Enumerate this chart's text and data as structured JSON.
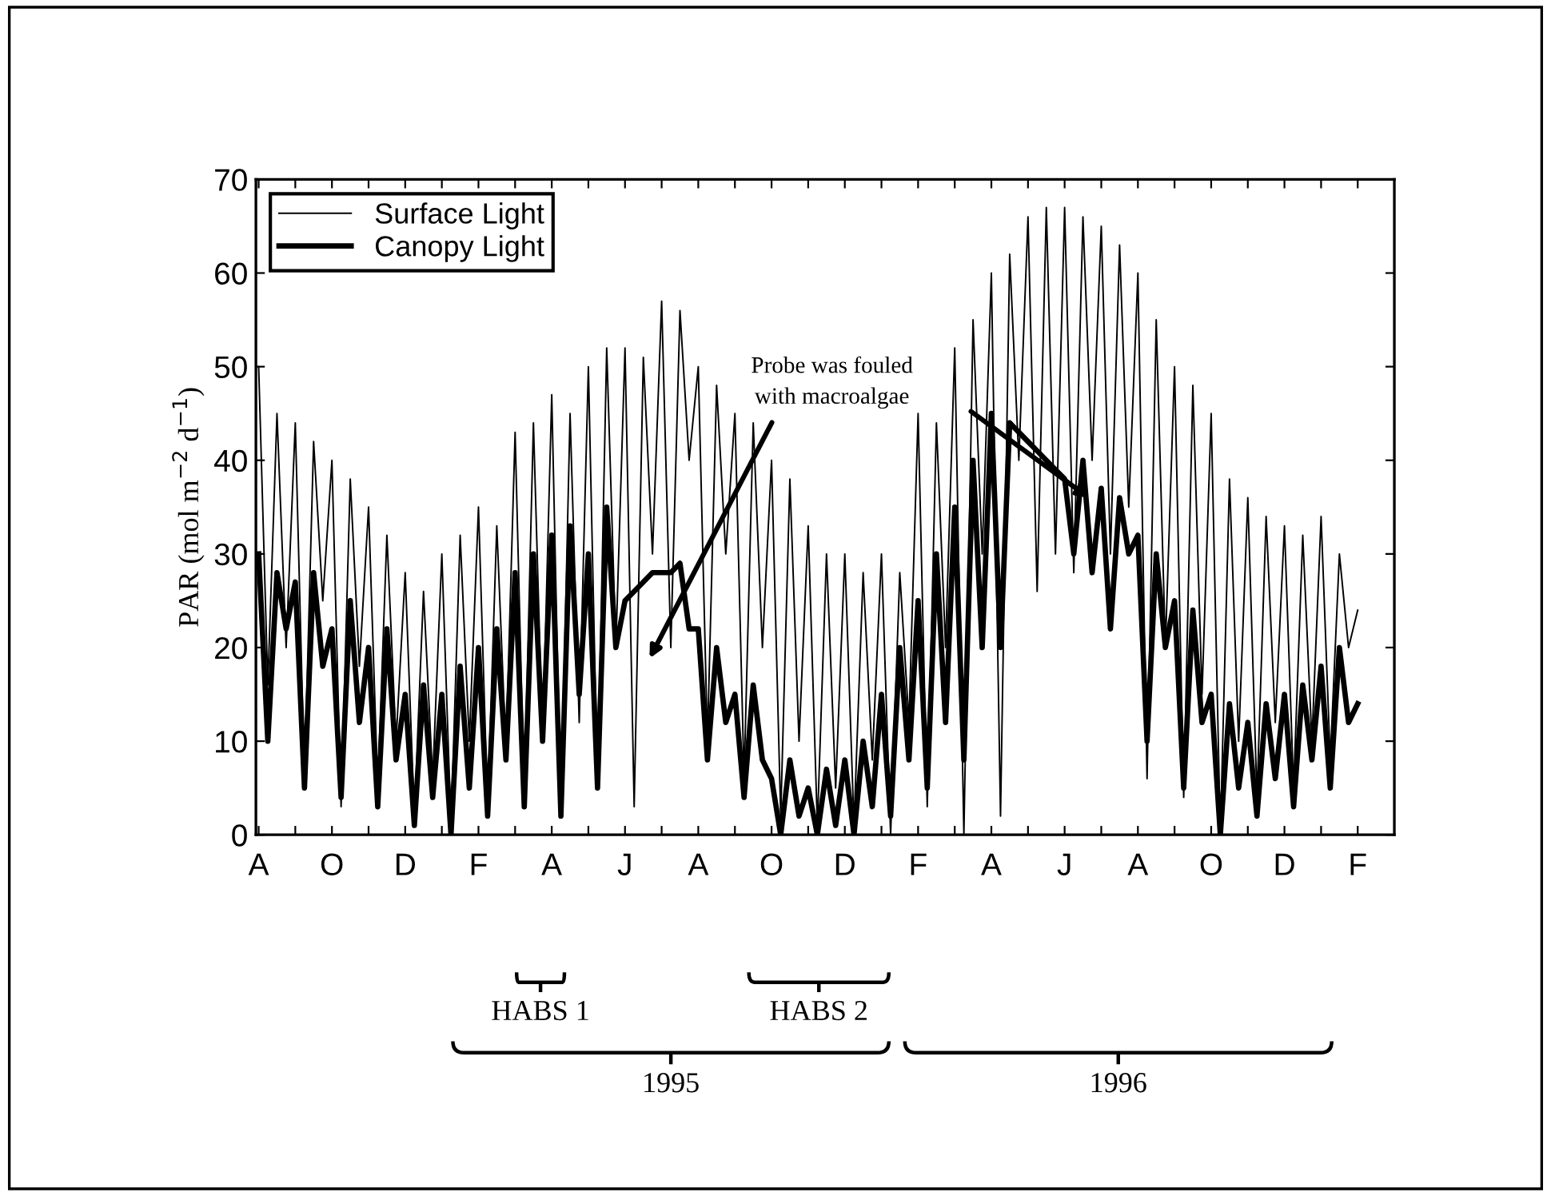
{
  "chart_data": {
    "type": "line",
    "ylabel": "PAR (mol m$^{−2}$ d$^{−1}$)",
    "categories": [
      "A",
      null,
      null,
      null,
      null,
      null,
      null,
      null,
      "O",
      null,
      null,
      null,
      null,
      null,
      null,
      null,
      "D",
      null,
      null,
      null,
      null,
      null,
      null,
      null,
      "F",
      null,
      null,
      null,
      null,
      null,
      null,
      null,
      "A",
      null,
      null,
      null,
      null,
      null,
      null,
      null,
      "J",
      null,
      null,
      null,
      null,
      null,
      null,
      null,
      "A",
      null,
      null,
      null,
      null,
      null,
      null,
      null,
      "O",
      null,
      null,
      null,
      null,
      null,
      null,
      null,
      "D",
      null,
      null,
      null,
      null,
      null,
      null,
      null,
      "F",
      null,
      null,
      null,
      null,
      null,
      null,
      null,
      "A",
      null,
      null,
      null,
      null,
      null,
      null,
      null,
      "J",
      null,
      null,
      null,
      null,
      null,
      null,
      null,
      "A",
      null,
      null,
      null,
      null,
      null,
      null,
      null,
      "O",
      null,
      null,
      null,
      null,
      null,
      null,
      null,
      "D",
      null,
      null,
      null,
      null,
      null,
      null,
      null,
      "F"
    ],
    "series": [
      {
        "name": "Surface Light",
        "color": "#000000",
        "values": [
          50,
          16,
          45,
          20,
          44,
          6,
          42,
          25,
          40,
          3,
          38,
          18,
          35,
          5,
          32,
          10,
          28,
          2,
          26,
          6,
          30,
          1,
          32,
          10,
          35,
          3,
          33,
          9,
          43,
          4,
          44,
          10,
          47,
          2,
          45,
          12,
          50,
          5,
          52,
          20,
          52,
          3,
          51,
          30,
          57,
          20,
          56,
          40,
          50,
          10,
          48,
          30,
          45,
          6,
          44,
          20,
          40,
          2,
          38,
          10,
          33,
          1,
          30,
          5,
          30,
          1,
          28,
          8,
          30,
          0,
          28,
          12,
          45,
          3,
          44,
          20,
          52,
          0,
          55,
          30,
          60,
          2,
          62,
          40,
          66,
          26,
          67,
          30,
          67,
          28,
          66,
          40,
          65,
          30,
          63,
          35,
          60,
          6,
          55,
          20,
          50,
          4,
          48,
          15,
          45,
          0,
          38,
          10,
          36,
          4,
          34,
          12,
          33,
          5,
          32,
          10,
          34,
          8,
          30,
          20,
          24
        ]
      },
      {
        "name": "Canopy Light",
        "color": "#000000",
        "values": [
          30,
          10,
          28,
          22,
          27,
          5,
          28,
          18,
          22,
          4,
          25,
          12,
          20,
          3,
          22,
          8,
          15,
          1,
          16,
          4,
          15,
          0,
          18,
          5,
          20,
          2,
          22,
          8,
          28,
          3,
          30,
          10,
          32,
          2,
          33,
          15,
          30,
          5,
          35,
          20,
          25,
          26,
          27,
          28,
          28,
          28,
          29,
          22,
          22,
          8,
          20,
          12,
          15,
          4,
          16,
          8,
          6,
          0,
          8,
          2,
          5,
          0,
          7,
          1,
          8,
          0,
          10,
          3,
          15,
          2,
          20,
          8,
          25,
          5,
          30,
          12,
          35,
          8,
          40,
          20,
          45,
          20,
          44,
          43,
          42,
          41,
          40,
          39,
          38,
          30,
          40,
          28,
          37,
          22,
          36,
          30,
          32,
          10,
          30,
          20,
          25,
          5,
          24,
          12,
          15,
          0,
          14,
          5,
          12,
          2,
          14,
          6,
          15,
          3,
          16,
          8,
          18,
          5,
          20,
          12,
          14
        ]
      }
    ],
    "ylim": [
      0,
      70
    ],
    "yticks": [
      0,
      10,
      20,
      30,
      40,
      50,
      60,
      70
    ],
    "grid": false,
    "legend": "top left",
    "marker": "none",
    "line_style": "solid",
    "annotations": [
      "Probe was fouled\nwith macroalgae",
      "HABS 1",
      "HABS 2",
      "1995",
      "1996"
    ]
  }
}
